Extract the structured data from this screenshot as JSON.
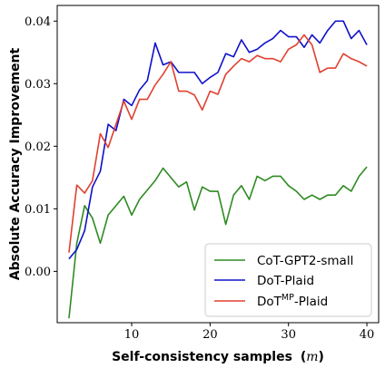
{
  "chart_data": {
    "type": "line",
    "xlabel": "Self-consistency samples",
    "xlabel_var": "m",
    "ylabel": "Absolute Accuracy Improvement",
    "xlim": [
      0.5,
      41.5
    ],
    "ylim": [
      -0.0082,
      0.0425
    ],
    "xticks": [
      10,
      20,
      30,
      40
    ],
    "yticks": [
      0.0,
      0.01,
      0.02,
      0.03,
      0.04
    ],
    "ytick_labels": [
      "0.00",
      "0.01",
      "0.02",
      "0.03",
      "0.04"
    ],
    "legend_position": "lower-right",
    "x": [
      2,
      3,
      4,
      5,
      6,
      7,
      8,
      9,
      10,
      11,
      12,
      13,
      14,
      15,
      16,
      17,
      18,
      19,
      20,
      21,
      22,
      23,
      24,
      25,
      26,
      27,
      28,
      29,
      30,
      31,
      32,
      33,
      34,
      35,
      36,
      37,
      38,
      39,
      40
    ],
    "series": [
      {
        "name": "CoT-GPT2-small",
        "color": "#2e8b22",
        "values": [
          -0.0075,
          0.0045,
          0.0105,
          0.0085,
          0.0045,
          0.009,
          0.0105,
          0.012,
          0.009,
          0.0115,
          0.013,
          0.0145,
          0.0165,
          0.015,
          0.0135,
          0.0143,
          0.0098,
          0.0135,
          0.0128,
          0.0128,
          0.0075,
          0.0122,
          0.0137,
          0.0115,
          0.0152,
          0.0145,
          0.0152,
          0.0152,
          0.0137,
          0.0128,
          0.0115,
          0.0122,
          0.0115,
          0.0122,
          0.0122,
          0.0137,
          0.0128,
          0.0152,
          0.0167
        ]
      },
      {
        "name": "DoT-Plaid",
        "color": "#1010cc",
        "values": [
          0.002,
          0.0035,
          0.0065,
          0.0135,
          0.016,
          0.0235,
          0.0225,
          0.0275,
          0.0265,
          0.029,
          0.0305,
          0.0365,
          0.033,
          0.0335,
          0.0318,
          0.0318,
          0.0318,
          0.03,
          0.031,
          0.0318,
          0.0348,
          0.0343,
          0.037,
          0.035,
          0.0355,
          0.0365,
          0.0372,
          0.0385,
          0.0375,
          0.0375,
          0.0358,
          0.0378,
          0.0365,
          0.0385,
          0.04,
          0.04,
          0.0372,
          0.0385,
          0.0362
        ]
      },
      {
        "name": "DoT",
        "name_sup": "MP",
        "name_suffix": "-Plaid",
        "color": "#e04030",
        "values": [
          0.003,
          0.0138,
          0.0125,
          0.0145,
          0.022,
          0.0198,
          0.0235,
          0.0272,
          0.0243,
          0.0275,
          0.0275,
          0.0298,
          0.0315,
          0.0335,
          0.0288,
          0.0288,
          0.0282,
          0.0258,
          0.0288,
          0.0283,
          0.0315,
          0.0328,
          0.034,
          0.0335,
          0.0345,
          0.034,
          0.034,
          0.0335,
          0.0355,
          0.0362,
          0.0378,
          0.0362,
          0.0318,
          0.0325,
          0.0325,
          0.0348,
          0.034,
          0.0335,
          0.0328
        ]
      }
    ]
  }
}
